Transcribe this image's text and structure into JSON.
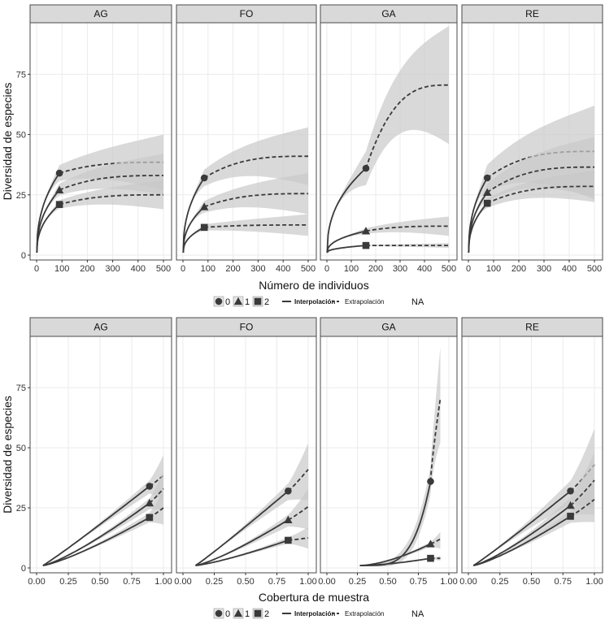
{
  "chart_data": [
    {
      "type": "line",
      "panel_group": "top",
      "xlabel": "Número de individuos",
      "ylabel": "Diversidad de especies",
      "xlim": [
        0,
        500
      ],
      "ylim": [
        0,
        95
      ],
      "xticks": [
        0,
        100,
        200,
        300,
        400,
        500
      ],
      "yticks": [
        0,
        25,
        50,
        75
      ],
      "xtick_labels": [
        "0",
        "100",
        "200",
        "300",
        "400",
        "500"
      ],
      "ytick_labels": [
        "0",
        "25",
        "50",
        "75"
      ],
      "facets": [
        {
          "label": "AG",
          "series": [
            {
              "order": "0",
              "marker": "circle",
              "observed": [
                90,
                34
              ],
              "end_value": 38.5,
              "band_low": 27,
              "band_high": 50
            },
            {
              "order": "1",
              "marker": "triangle",
              "observed": [
                90,
                27
              ],
              "end_value": 33,
              "band_low": 25,
              "band_high": 42
            },
            {
              "order": "2",
              "marker": "square",
              "observed": [
                90,
                21
              ],
              "end_value": 25,
              "band_low": 19,
              "band_high": 31
            }
          ]
        },
        {
          "label": "FO",
          "series": [
            {
              "order": "0",
              "marker": "circle",
              "observed": [
                85,
                32
              ],
              "end_value": 41,
              "band_low": 29,
              "band_high": 53
            },
            {
              "order": "1",
              "marker": "triangle",
              "observed": [
                85,
                20
              ],
              "end_value": 25.5,
              "band_low": 17,
              "band_high": 34
            },
            {
              "order": "2",
              "marker": "square",
              "observed": [
                85,
                11.5
              ],
              "end_value": 12.5,
              "band_low": 8,
              "band_high": 17
            }
          ]
        },
        {
          "label": "GA",
          "series": [
            {
              "order": "0",
              "marker": "circle",
              "observed": [
                160,
                36
              ],
              "end_value": 70.5,
              "band_low": 46,
              "band_high": 95
            },
            {
              "order": "1",
              "marker": "triangle",
              "observed": [
                160,
                10
              ],
              "end_value": 12,
              "band_low": 8,
              "band_high": 16
            },
            {
              "order": "2",
              "marker": "square",
              "observed": [
                160,
                4
              ],
              "end_value": 4,
              "band_low": 3,
              "band_high": 5
            }
          ]
        },
        {
          "label": "RE",
          "series": [
            {
              "order": "0",
              "marker": "circle",
              "observed": [
                75,
                32
              ],
              "end_value": 43,
              "band_low": 23,
              "band_high": 62
            },
            {
              "order": "1",
              "marker": "triangle",
              "observed": [
                75,
                26
              ],
              "end_value": 36.5,
              "band_low": 24,
              "band_high": 49
            },
            {
              "order": "2",
              "marker": "square",
              "observed": [
                75,
                21.5
              ],
              "end_value": 28.5,
              "band_low": 22,
              "band_high": 35
            }
          ]
        }
      ],
      "legend": {
        "orders": [
          "0",
          "1",
          "2"
        ],
        "interp_label": "Interpolación",
        "extrap_label": "Extrapolación",
        "na_label": "NA"
      }
    },
    {
      "type": "line",
      "panel_group": "bottom",
      "xlabel": "Cobertura de muestra",
      "ylabel": "Diversidad de especies",
      "xlim": [
        0,
        1.0
      ],
      "ylim": [
        0,
        95
      ],
      "xticks": [
        0,
        0.25,
        0.5,
        0.75,
        1.0
      ],
      "yticks": [
        0,
        25,
        50,
        75
      ],
      "xtick_labels": [
        "0.00",
        "0.25",
        "0.50",
        "0.75",
        "1.00"
      ],
      "ytick_labels": [
        "0",
        "25",
        "50",
        "75"
      ],
      "facets": [
        {
          "label": "AG",
          "start": [
            0.05,
            1
          ],
          "series": [
            {
              "order": "0",
              "marker": "circle",
              "observed": [
                0.89,
                34
              ],
              "end": [
                1.0,
                38.5
              ],
              "band_low": 28,
              "band_high": 47
            },
            {
              "order": "1",
              "marker": "triangle",
              "observed": [
                0.89,
                27
              ],
              "end": [
                1.0,
                33
              ],
              "band_low": 24,
              "band_high": 40
            },
            {
              "order": "2",
              "marker": "square",
              "observed": [
                0.89,
                21
              ],
              "end": [
                1.0,
                25
              ],
              "band_low": 18,
              "band_high": 32
            }
          ]
        },
        {
          "label": "FO",
          "start": [
            0.1,
            1
          ],
          "series": [
            {
              "order": "0",
              "marker": "circle",
              "observed": [
                0.84,
                32
              ],
              "end": [
                1.0,
                41
              ],
              "band_low": 28,
              "band_high": 52
            },
            {
              "order": "1",
              "marker": "triangle",
              "observed": [
                0.84,
                20
              ],
              "end": [
                1.0,
                25.5
              ],
              "band_low": 16,
              "band_high": 33
            },
            {
              "order": "2",
              "marker": "square",
              "observed": [
                0.84,
                11.5
              ],
              "end": [
                1.0,
                12.5
              ],
              "band_low": 8,
              "band_high": 17
            }
          ]
        },
        {
          "label": "GA",
          "start": [
            0.27,
            1
          ],
          "series": [
            {
              "order": "0",
              "marker": "circle",
              "observed": [
                0.85,
                36
              ],
              "end": [
                0.93,
                70.5
              ],
              "band_low": 52,
              "band_high": 92
            },
            {
              "order": "1",
              "marker": "triangle",
              "observed": [
                0.85,
                10
              ],
              "end": [
                0.93,
                12
              ],
              "band_low": 8,
              "band_high": 15
            },
            {
              "order": "2",
              "marker": "square",
              "observed": [
                0.85,
                4
              ],
              "end": [
                0.93,
                4
              ],
              "band_low": 3,
              "band_high": 5
            }
          ]
        },
        {
          "label": "RE",
          "start": [
            0.04,
            1
          ],
          "series": [
            {
              "order": "0",
              "marker": "circle",
              "observed": [
                0.81,
                32
              ],
              "end": [
                1.0,
                43
              ],
              "band_low": 24,
              "band_high": 58
            },
            {
              "order": "1",
              "marker": "triangle",
              "observed": [
                0.81,
                26
              ],
              "end": [
                1.0,
                36.5
              ],
              "band_low": 22,
              "band_high": 48
            },
            {
              "order": "2",
              "marker": "square",
              "observed": [
                0.81,
                21.5
              ],
              "end": [
                1.0,
                28.5
              ],
              "band_low": 19,
              "band_high": 36
            }
          ]
        }
      ],
      "legend": {
        "orders": [
          "0",
          "1",
          "2"
        ],
        "interp_label": "Interpolación",
        "extrap_label": "Extrapolación",
        "na_label": "NA"
      }
    }
  ],
  "colors": {
    "strip_fill": "#d9d9d9",
    "panel_border": "#4a4a4a",
    "grid": "#ebebeb",
    "line": "#3a3a3a",
    "band": "#c9c9c9"
  }
}
